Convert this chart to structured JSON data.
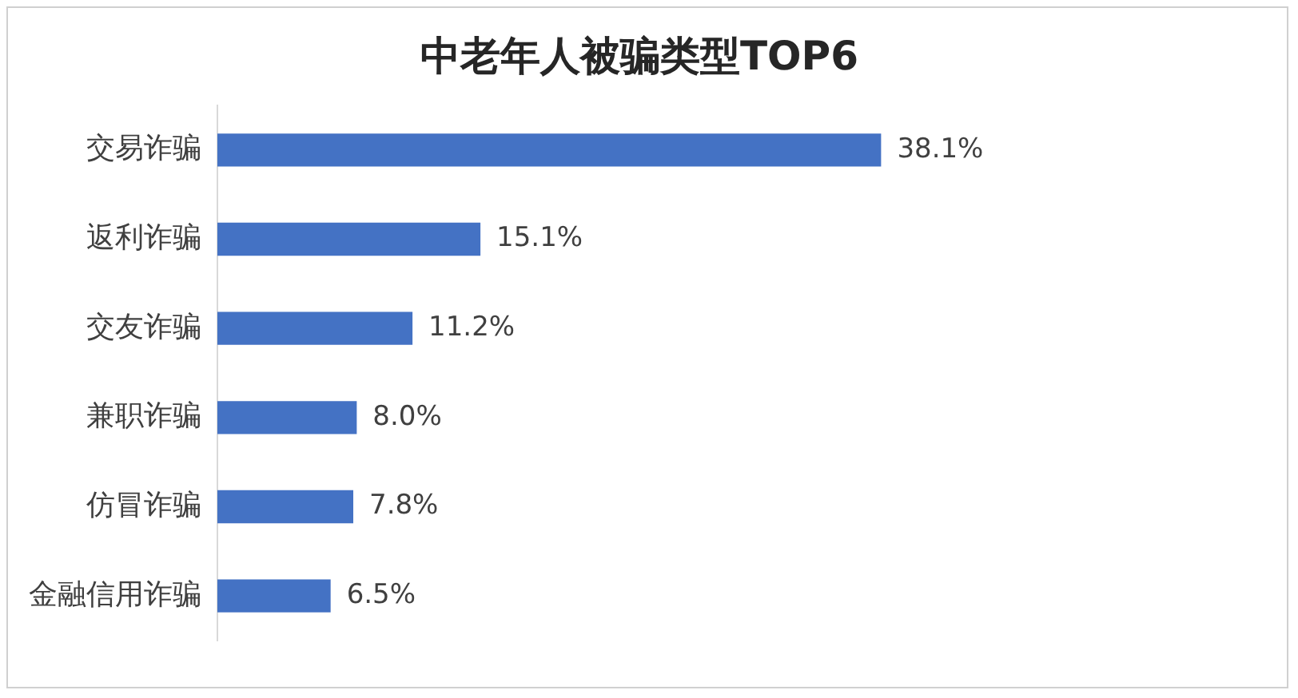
{
  "chart_data": {
    "type": "bar",
    "orientation": "horizontal",
    "title": "中老年人被骗类型TOP6",
    "categories": [
      "交易诈骗",
      "返利诈骗",
      "交友诈骗",
      "兼职诈骗",
      "仿冒诈骗",
      "金融信用诈骗"
    ],
    "values": [
      38.1,
      15.1,
      11.2,
      8.0,
      7.8,
      6.5
    ],
    "value_labels": [
      "38.1%",
      "15.1%",
      "11.2%",
      "8.0%",
      "7.8%",
      "6.5%"
    ],
    "color": "#4472c4",
    "legend": false
  }
}
